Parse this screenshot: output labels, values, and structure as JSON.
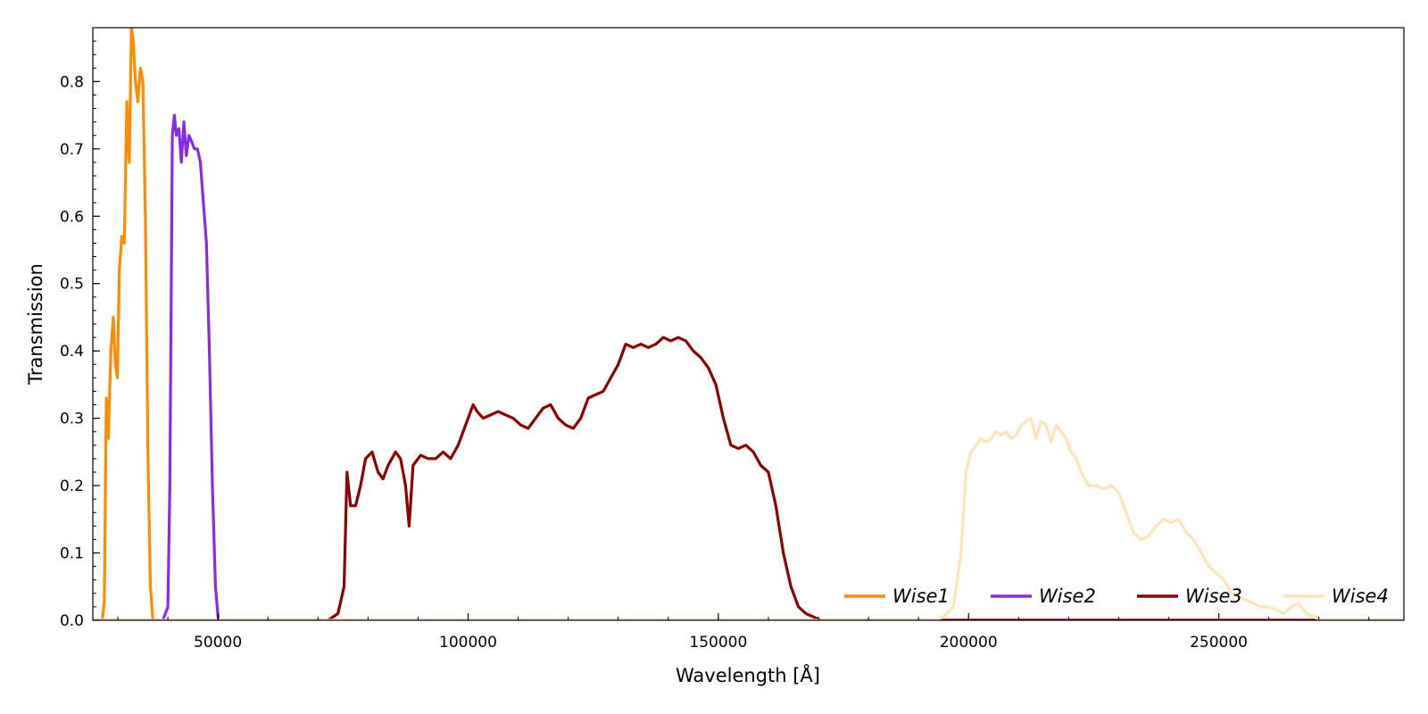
{
  "chart_data": {
    "type": "line",
    "title": "",
    "xlabel": "Wavelength [Å]",
    "ylabel": "Transmission",
    "xlim": [
      25000,
      287000
    ],
    "ylim": [
      0,
      0.88
    ],
    "x_ticks": [
      50000,
      100000,
      150000,
      200000,
      250000
    ],
    "x_tick_labels": [
      "50000",
      "100000",
      "150000",
      "200000",
      "250000"
    ],
    "y_ticks": [
      0.0,
      0.1,
      0.2,
      0.3,
      0.4,
      0.5,
      0.6,
      0.7,
      0.8
    ],
    "y_tick_labels": [
      "0.0",
      "0.1",
      "0.2",
      "0.3",
      "0.4",
      "0.5",
      "0.6",
      "0.7",
      "0.8"
    ],
    "grid": false,
    "legend_position": "lower-right",
    "legend_columns": 4,
    "series": [
      {
        "name": "Wise1",
        "legend_label": "Wise1",
        "color": "#ff8c00",
        "x": [
          25000,
          26900,
          27300,
          27700,
          28100,
          28600,
          29100,
          29500,
          29900,
          30300,
          30800,
          31300,
          31800,
          32300,
          32700,
          33100,
          33500,
          34000,
          34500,
          35000,
          35500,
          36000,
          36500,
          37000,
          37400,
          37800,
          38300,
          38800,
          39500,
          287000
        ],
        "y": [
          0.0,
          0.0,
          0.03,
          0.33,
          0.27,
          0.4,
          0.45,
          0.38,
          0.36,
          0.52,
          0.57,
          0.56,
          0.77,
          0.68,
          0.88,
          0.86,
          0.8,
          0.77,
          0.82,
          0.8,
          0.6,
          0.25,
          0.05,
          0.0,
          0.0,
          0.0,
          0.0,
          0.0,
          0.0,
          0.0
        ]
      },
      {
        "name": "Wise2",
        "legend_label": "Wise2",
        "color": "#8a2be2",
        "x": [
          25000,
          39000,
          40000,
          40400,
          40900,
          41300,
          41700,
          42200,
          42700,
          43200,
          43700,
          44200,
          44800,
          45300,
          45900,
          46500,
          47100,
          47700,
          48300,
          48900,
          49500,
          50100,
          50700,
          51200,
          51700,
          52200,
          52800,
          53400,
          54000,
          287000
        ],
        "y": [
          0.0,
          0.0,
          0.02,
          0.2,
          0.72,
          0.75,
          0.72,
          0.73,
          0.68,
          0.74,
          0.69,
          0.72,
          0.71,
          0.7,
          0.7,
          0.68,
          0.62,
          0.56,
          0.4,
          0.2,
          0.05,
          0.0,
          0.0,
          0.0,
          0.0,
          0.0,
          0.0,
          0.0,
          0.0,
          0.0
        ]
      },
      {
        "name": "Wise3",
        "legend_label": "Wise3",
        "color": "#8b0000",
        "x": [
          25000,
          72000,
          74000,
          75200,
          75800,
          76500,
          77500,
          78500,
          79500,
          80800,
          82000,
          83000,
          84000,
          85500,
          86500,
          87500,
          88200,
          89000,
          90500,
          92000,
          93500,
          95000,
          96500,
          98000,
          99500,
          101000,
          101800,
          103000,
          104500,
          106000,
          107500,
          109000,
          110500,
          112000,
          113500,
          115000,
          116500,
          118000,
          119500,
          121000,
          122500,
          124000,
          125500,
          127000,
          128500,
          130000,
          131500,
          133000,
          134500,
          136000,
          137500,
          139000,
          140500,
          142000,
          143500,
          145000,
          146500,
          148000,
          149500,
          151000,
          152500,
          154000,
          155500,
          157000,
          158500,
          160000,
          161500,
          163000,
          164500,
          166000,
          167500,
          169000,
          170500,
          172000,
          174000,
          176000,
          287000
        ],
        "y": [
          0.0,
          0.0,
          0.01,
          0.05,
          0.22,
          0.17,
          0.17,
          0.2,
          0.24,
          0.25,
          0.22,
          0.21,
          0.23,
          0.25,
          0.24,
          0.2,
          0.14,
          0.23,
          0.245,
          0.24,
          0.24,
          0.25,
          0.24,
          0.26,
          0.29,
          0.32,
          0.31,
          0.3,
          0.305,
          0.31,
          0.305,
          0.3,
          0.29,
          0.285,
          0.3,
          0.315,
          0.32,
          0.3,
          0.29,
          0.285,
          0.3,
          0.33,
          0.335,
          0.34,
          0.36,
          0.38,
          0.41,
          0.405,
          0.41,
          0.405,
          0.41,
          0.42,
          0.415,
          0.42,
          0.415,
          0.4,
          0.39,
          0.375,
          0.35,
          0.3,
          0.26,
          0.255,
          0.26,
          0.25,
          0.23,
          0.22,
          0.17,
          0.1,
          0.05,
          0.02,
          0.01,
          0.005,
          0.0,
          0.0,
          0.0,
          0.0,
          0.0
        ]
      },
      {
        "name": "Wise4",
        "legend_label": "Wise4",
        "color": "#ffe4b5",
        "x": [
          25000,
          193000,
          195000,
          197000,
          198500,
          199500,
          200500,
          201500,
          202500,
          203500,
          204500,
          205500,
          206500,
          207500,
          208500,
          209500,
          210500,
          211500,
          212500,
          213500,
          214500,
          215500,
          216500,
          217500,
          218500,
          219500,
          220500,
          221500,
          222500,
          224000,
          225500,
          227000,
          228500,
          230000,
          231500,
          233000,
          234500,
          236000,
          237500,
          239000,
          240500,
          242000,
          243500,
          245000,
          246500,
          248000,
          249500,
          251000,
          252500,
          254000,
          255500,
          257000,
          258500,
          260000,
          261500,
          263000,
          264500,
          266000,
          267500,
          269000,
          270500,
          272000,
          274000,
          276000,
          287000
        ],
        "y": [
          0.0,
          0.0,
          0.005,
          0.02,
          0.1,
          0.22,
          0.25,
          0.26,
          0.27,
          0.265,
          0.27,
          0.28,
          0.275,
          0.28,
          0.27,
          0.275,
          0.29,
          0.295,
          0.3,
          0.27,
          0.295,
          0.29,
          0.265,
          0.29,
          0.28,
          0.27,
          0.25,
          0.24,
          0.22,
          0.2,
          0.2,
          0.195,
          0.2,
          0.19,
          0.16,
          0.13,
          0.12,
          0.125,
          0.14,
          0.15,
          0.145,
          0.15,
          0.13,
          0.12,
          0.1,
          0.08,
          0.07,
          0.06,
          0.04,
          0.035,
          0.03,
          0.025,
          0.02,
          0.02,
          0.015,
          0.01,
          0.02,
          0.025,
          0.01,
          0.005,
          0.0,
          0.0,
          0.0,
          0.0,
          0.0
        ]
      }
    ]
  }
}
